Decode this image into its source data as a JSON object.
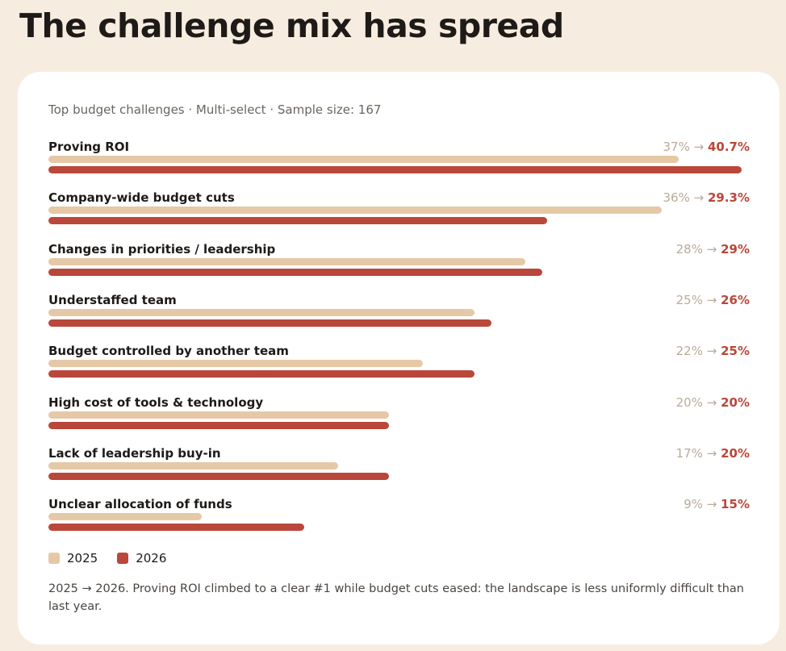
{
  "title": "The challenge mix has spread",
  "subtitle": "Top budget challenges · Multi-select · Sample size: 167",
  "colors": {
    "2025": "#e5c9a6",
    "2026": "#b9473a",
    "background": "#f6ede0",
    "card": "#ffffff"
  },
  "arrow": "→",
  "legend": [
    {
      "label": "2025",
      "color": "#e5c9a6"
    },
    {
      "label": "2026",
      "color": "#b9473a"
    }
  ],
  "footnote": "2025 → 2026. Proving ROI climbed to a clear #1 while budget cuts eased: the landscape is less uniformly difficult than last year.",
  "chart_data": {
    "type": "bar",
    "orientation": "horizontal",
    "categories": [
      "Proving ROI",
      "Company-wide budget cuts",
      "Changes in priorities / leadership",
      "Understaffed team",
      "Budget controlled by another team",
      "High cost of tools & technology",
      "Lack of leadership buy-in",
      "Unclear allocation of funds"
    ],
    "series": [
      {
        "name": "2025",
        "values": [
          37,
          36,
          28,
          25,
          22,
          20,
          17,
          9
        ]
      },
      {
        "name": "2026",
        "values": [
          40.7,
          29.3,
          29,
          26,
          25,
          20,
          20,
          15
        ]
      }
    ],
    "value_labels": [
      {
        "old": "37%",
        "new": "40.7%"
      },
      {
        "old": "36%",
        "new": "29.3%"
      },
      {
        "old": "28%",
        "new": "29%"
      },
      {
        "old": "25%",
        "new": "26%"
      },
      {
        "old": "22%",
        "new": "25%"
      },
      {
        "old": "20%",
        "new": "20%"
      },
      {
        "old": "17%",
        "new": "20%"
      },
      {
        "old": "9%",
        "new": "15%"
      }
    ],
    "xlim": [
      0,
      40.7
    ],
    "grid": false,
    "legend_position": "bottom-left"
  }
}
